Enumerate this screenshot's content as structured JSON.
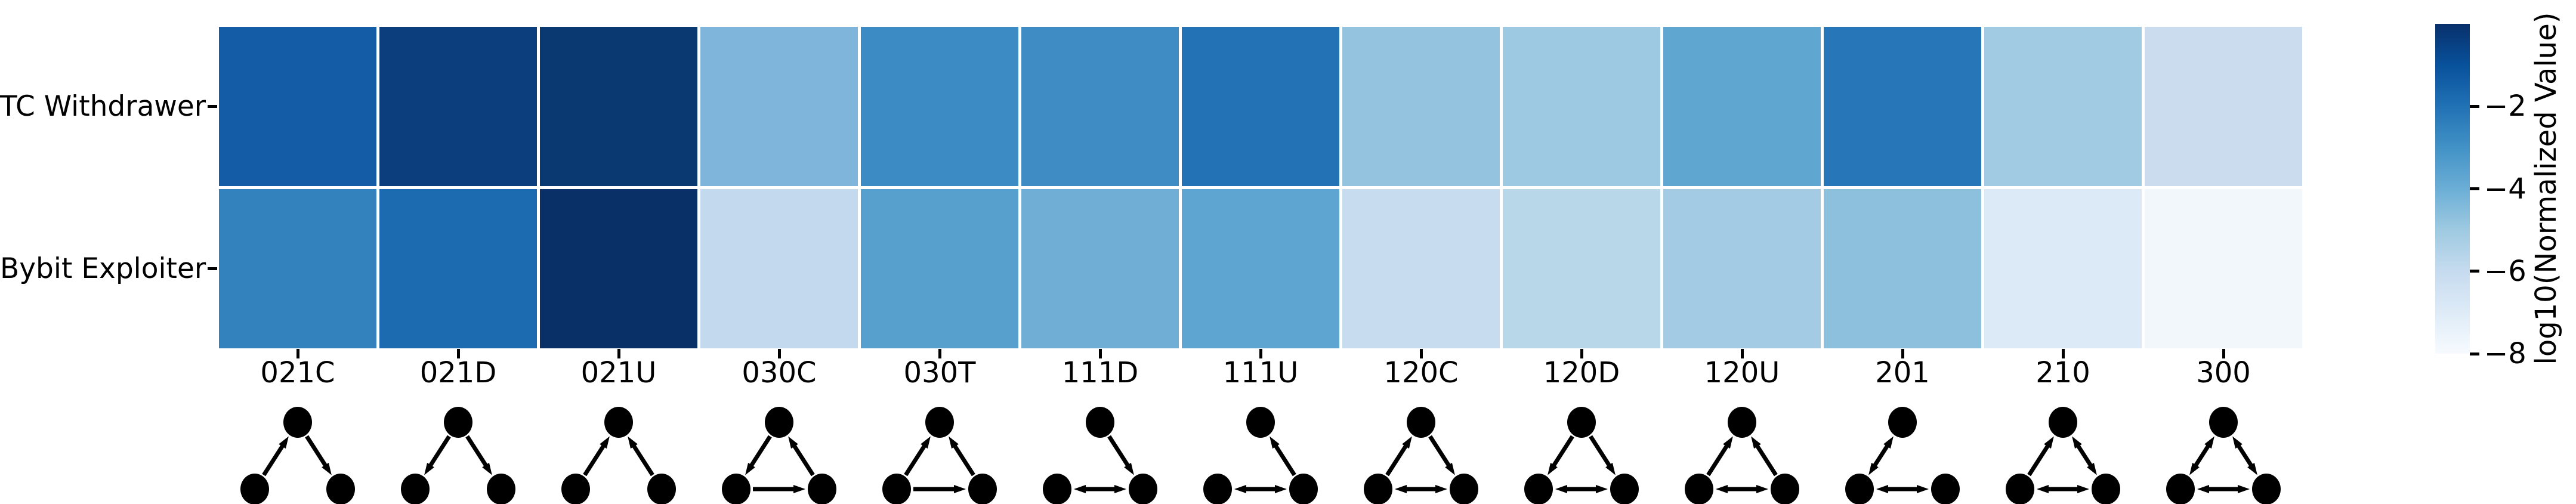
{
  "colorbar": {
    "label": "log10(Normalized Value)",
    "tick_labels": [
      "−2",
      "−4",
      "−6",
      "−8"
    ],
    "tick_values": [
      -2,
      -4,
      -6,
      -8
    ],
    "vmax": 0,
    "vmin": -8,
    "gradient_stops": [
      "#08306b",
      "#08519c",
      "#2171b5",
      "#4292c6",
      "#6baed6",
      "#9ecae1",
      "#c6dbef",
      "#deebf7",
      "#f7fbff"
    ]
  },
  "chart_data": {
    "type": "heatmap",
    "rows": [
      "TC Withdrawer",
      "Bybit Exploiter"
    ],
    "categories": [
      "021C",
      "021D",
      "021U",
      "030C",
      "030T",
      "111D",
      "111U",
      "120C",
      "120D",
      "120U",
      "201",
      "210",
      "300"
    ],
    "values_log10": [
      [
        -1.6,
        -0.5,
        -0.4,
        -4.3,
        -2.8,
        -2.8,
        -2.1,
        -4.8,
        -5.0,
        -3.7,
        -2.2,
        -5.1,
        -6.1
      ],
      [
        -2.5,
        -1.9,
        -0.1,
        -6.0,
        -3.5,
        -4.1,
        -3.8,
        -6.1,
        -5.7,
        -5.2,
        -4.7,
        -7.0,
        -7.9
      ]
    ],
    "cell_colors": [
      [
        "#145da6",
        "#0c3d7c",
        "#0a3971",
        "#7fb5da",
        "#3d8bc4",
        "#3f8cc4",
        "#2272b5",
        "#94c3df",
        "#9dc9e2",
        "#5fa6d1",
        "#2676b8",
        "#a0cbe3",
        "#cbdcee"
      ],
      [
        "#3381bd",
        "#1c6ab0",
        "#093067",
        "#c3d9ee",
        "#57a0ce",
        "#70aed6",
        "#5ea5d1",
        "#c8dcef",
        "#b8d8ea",
        "#a3cce4",
        "#8cc0dd",
        "#dce9f6",
        "#f2f7fc"
      ]
    ],
    "colormap": "Blues",
    "colorbar_label": "log10(Normalized Value)",
    "colorbar_ticks": [
      -2,
      -4,
      -6,
      -8
    ],
    "vmin": -8,
    "vmax": 0,
    "grid": "white cell separators",
    "legend_position": "right-colorbar"
  },
  "motifs": [
    {
      "name": "021C",
      "edges": [
        {
          "from": "L",
          "to": "T",
          "mutual": false
        },
        {
          "from": "T",
          "to": "R",
          "mutual": false
        }
      ]
    },
    {
      "name": "021D",
      "edges": [
        {
          "from": "T",
          "to": "L",
          "mutual": false
        },
        {
          "from": "T",
          "to": "R",
          "mutual": false
        }
      ]
    },
    {
      "name": "021U",
      "edges": [
        {
          "from": "L",
          "to": "T",
          "mutual": false
        },
        {
          "from": "R",
          "to": "T",
          "mutual": false
        }
      ]
    },
    {
      "name": "030C",
      "edges": [
        {
          "from": "T",
          "to": "L",
          "mutual": false
        },
        {
          "from": "L",
          "to": "R",
          "mutual": false
        },
        {
          "from": "R",
          "to": "T",
          "mutual": false
        }
      ]
    },
    {
      "name": "030T",
      "edges": [
        {
          "from": "L",
          "to": "T",
          "mutual": false
        },
        {
          "from": "R",
          "to": "T",
          "mutual": false
        },
        {
          "from": "L",
          "to": "R",
          "mutual": false
        }
      ]
    },
    {
      "name": "111D",
      "edges": [
        {
          "from": "T",
          "to": "R",
          "mutual": false
        },
        {
          "from": "L",
          "to": "R",
          "mutual": true
        }
      ]
    },
    {
      "name": "111U",
      "edges": [
        {
          "from": "R",
          "to": "T",
          "mutual": false
        },
        {
          "from": "L",
          "to": "R",
          "mutual": true
        }
      ]
    },
    {
      "name": "120C",
      "edges": [
        {
          "from": "L",
          "to": "T",
          "mutual": false
        },
        {
          "from": "T",
          "to": "R",
          "mutual": false
        },
        {
          "from": "L",
          "to": "R",
          "mutual": true
        }
      ]
    },
    {
      "name": "120D",
      "edges": [
        {
          "from": "T",
          "to": "L",
          "mutual": false
        },
        {
          "from": "T",
          "to": "R",
          "mutual": false
        },
        {
          "from": "L",
          "to": "R",
          "mutual": true
        }
      ]
    },
    {
      "name": "120U",
      "edges": [
        {
          "from": "L",
          "to": "T",
          "mutual": false
        },
        {
          "from": "R",
          "to": "T",
          "mutual": false
        },
        {
          "from": "L",
          "to": "R",
          "mutual": true
        }
      ]
    },
    {
      "name": "201",
      "edges": [
        {
          "from": "T",
          "to": "L",
          "mutual": true
        },
        {
          "from": "L",
          "to": "R",
          "mutual": true
        }
      ]
    },
    {
      "name": "210",
      "edges": [
        {
          "from": "L",
          "to": "T",
          "mutual": false
        },
        {
          "from": "T",
          "to": "R",
          "mutual": true
        },
        {
          "from": "L",
          "to": "R",
          "mutual": true
        }
      ]
    },
    {
      "name": "300",
      "edges": [
        {
          "from": "T",
          "to": "L",
          "mutual": true
        },
        {
          "from": "T",
          "to": "R",
          "mutual": true
        },
        {
          "from": "L",
          "to": "R",
          "mutual": true
        }
      ]
    }
  ]
}
